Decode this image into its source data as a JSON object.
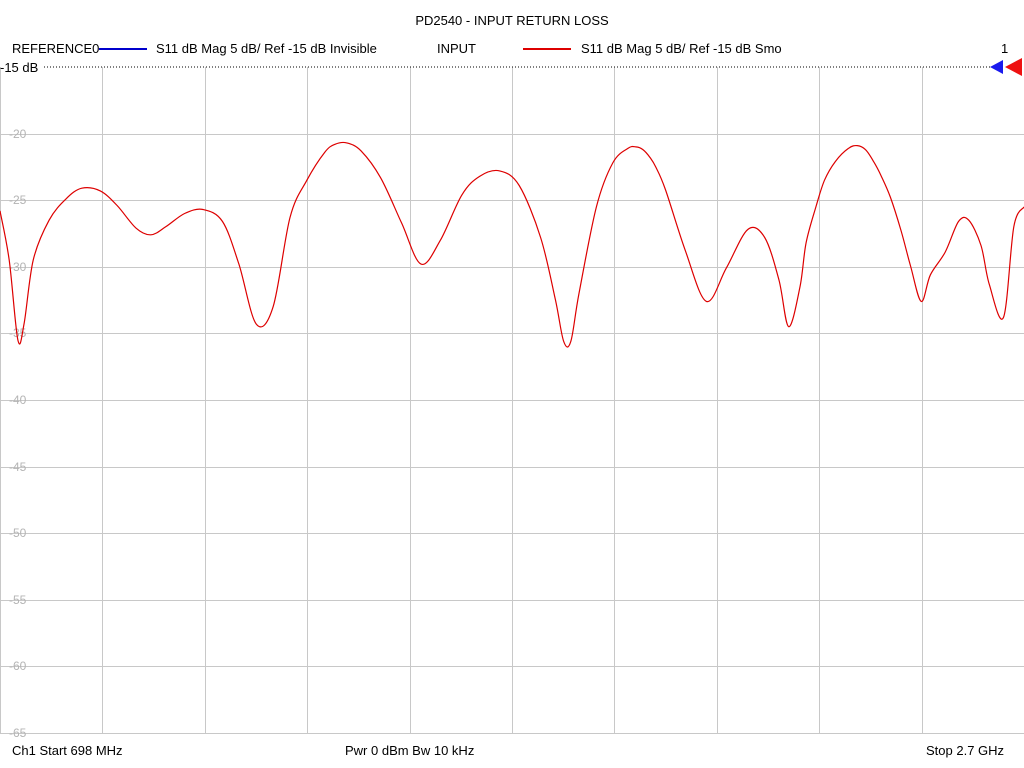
{
  "header": {
    "title": "PD2540 - INPUT RETURN LOSS"
  },
  "legend": {
    "trace1_name": "REFERENCE0",
    "trace1_desc": "S11  dB Mag  5 dB/ Ref -15 dB  Invisible",
    "trace2_name": "INPUT",
    "trace2_desc": "S11  dB Mag  5 dB/ Ref -15 dB  Smo",
    "channel_marker": "1"
  },
  "footer": {
    "start": "Ch1  Start  698 MHz",
    "power": "Pwr  0 dBm  Bw  10 kHz",
    "stop": "Stop  2.7 GHz"
  },
  "colors": {
    "trace_reference": "#0000cc",
    "trace_input": "#dd0000",
    "grid": "#c8c8c8",
    "tick_label": "#b4b4b4"
  },
  "chart_data": {
    "type": "line",
    "title": "PD2540 - INPUT RETURN LOSS",
    "reference_label": "-15 dB",
    "xlim_mhz": [
      698,
      2700
    ],
    "ylim": [
      -65,
      -15
    ],
    "y_ticks": [
      "-20",
      "-25",
      "-30",
      "-35",
      "-40",
      "-45",
      "-50",
      "-55",
      "-60",
      "-65"
    ],
    "y_tick_values": [
      -20,
      -25,
      -30,
      -35,
      -40,
      -45,
      -50,
      -55,
      -60,
      -65
    ],
    "grid": true,
    "x_divisions": 10,
    "series": [
      {
        "name": "INPUT",
        "x": [
          698,
          716,
          733,
          745,
          763,
          794,
          827,
          858,
          894,
          927,
          964,
          993,
          1022,
          1059,
          1095,
          1133,
          1165,
          1199,
          1232,
          1265,
          1298,
          1333,
          1353,
          1376,
          1404,
          1442,
          1483,
          1521,
          1559,
          1601,
          1636,
          1675,
          1713,
          1755,
          1784,
          1800,
          1814,
          1830,
          1864,
          1896,
          1926,
          1941,
          1955,
          1969,
          1980,
          1999,
          2038,
          2079,
          2118,
          2160,
          2193,
          2221,
          2240,
          2262,
          2274,
          2294,
          2310,
          2331,
          2357,
          2374,
          2390,
          2406,
          2421,
          2439,
          2459,
          2478,
          2499,
          2517,
          2546,
          2572,
          2592,
          2616,
          2632,
          2660,
          2680,
          2700
        ],
        "values": [
          -25.8,
          -29.5,
          -35.5,
          -34.3,
          -29.5,
          -26.5,
          -24.9,
          -24.1,
          -24.3,
          -25.4,
          -27.1,
          -27.6,
          -27.0,
          -26.0,
          -25.7,
          -26.6,
          -29.8,
          -34.3,
          -33.0,
          -26.3,
          -23.5,
          -21.4,
          -20.8,
          -20.7,
          -21.3,
          -23.3,
          -26.7,
          -29.8,
          -28.0,
          -24.6,
          -23.2,
          -22.8,
          -23.9,
          -27.8,
          -32.5,
          -35.6,
          -35.6,
          -32.0,
          -25.5,
          -22.2,
          -21.1,
          -21.0,
          -21.2,
          -21.8,
          -22.5,
          -24.2,
          -28.8,
          -32.6,
          -30.1,
          -27.2,
          -27.8,
          -31.0,
          -34.5,
          -31.5,
          -28.2,
          -25.4,
          -23.5,
          -22.1,
          -21.1,
          -20.9,
          -21.2,
          -22.1,
          -23.2,
          -24.8,
          -27.2,
          -29.9,
          -32.6,
          -30.6,
          -28.9,
          -26.6,
          -26.5,
          -28.4,
          -31.3,
          -33.8,
          -27.0,
          -25.5
        ]
      }
    ]
  }
}
